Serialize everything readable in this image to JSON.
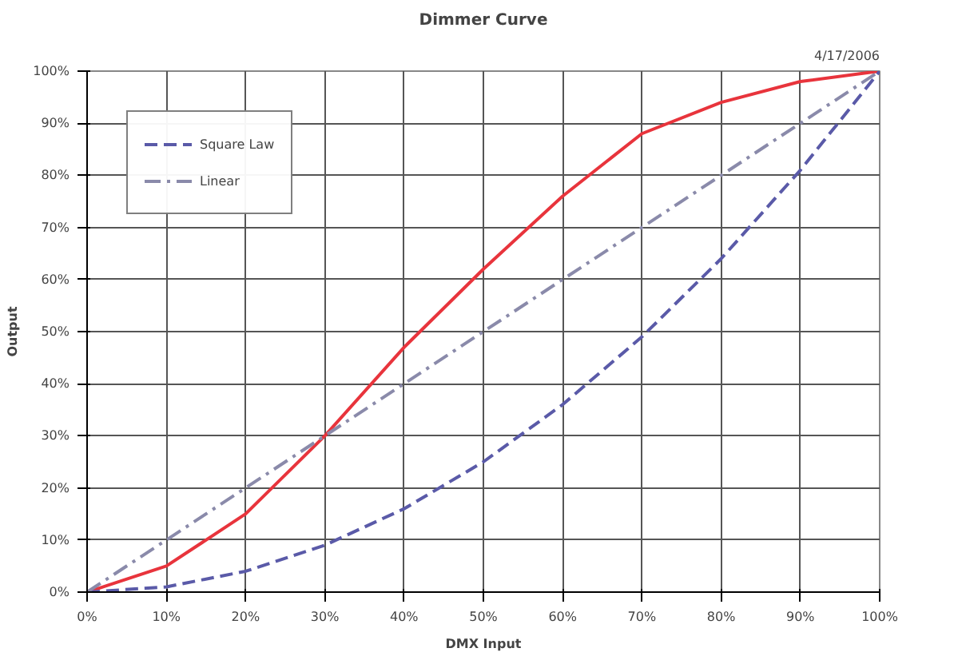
{
  "chart_data": {
    "type": "line",
    "title": "Dimmer Curve",
    "subtitle": "4/17/2006",
    "xlabel": "DMX Input",
    "ylabel": "Output",
    "x": [
      0,
      10,
      20,
      30,
      40,
      50,
      60,
      70,
      80,
      90,
      100
    ],
    "series": [
      {
        "color": "#e8343c",
        "line_style": "solid",
        "values": [
          0,
          5,
          15,
          30,
          47,
          62,
          76,
          88,
          94,
          98,
          100
        ]
      },
      {
        "name": "Square Law",
        "color": "#5a5aa8",
        "line_style": "dashed",
        "values": [
          0,
          1,
          4,
          9,
          16,
          25,
          36,
          49,
          64,
          81,
          100
        ]
      },
      {
        "name": "Linear",
        "color": "#8a8aaa",
        "line_style": "dashdot",
        "values": [
          0,
          10,
          20,
          30,
          40,
          50,
          60,
          70,
          80,
          90,
          100
        ]
      }
    ],
    "xlim": [
      0,
      100
    ],
    "ylim": [
      0,
      100
    ],
    "xticks": [
      {
        "value": 0,
        "label": "0%"
      },
      {
        "value": 10,
        "label": "10%"
      },
      {
        "value": 20,
        "label": "20%"
      },
      {
        "value": 30,
        "label": "30%"
      },
      {
        "value": 40,
        "label": "40%"
      },
      {
        "value": 50,
        "label": "50%"
      },
      {
        "value": 60,
        "label": "60%"
      },
      {
        "value": 70,
        "label": "70%"
      },
      {
        "value": 80,
        "label": "80%"
      },
      {
        "value": 90,
        "label": "90%"
      },
      {
        "value": 100,
        "label": "100%"
      }
    ],
    "yticks": [
      {
        "value": 0,
        "label": "0%"
      },
      {
        "value": 10,
        "label": "10%"
      },
      {
        "value": 20,
        "label": "20%"
      },
      {
        "value": 30,
        "label": "30%"
      },
      {
        "value": 40,
        "label": "40%"
      },
      {
        "value": 50,
        "label": "50%"
      },
      {
        "value": 60,
        "label": "60%"
      },
      {
        "value": 70,
        "label": "70%"
      },
      {
        "value": 80,
        "label": "80%"
      },
      {
        "value": 90,
        "label": "90%"
      },
      {
        "value": 100,
        "label": "100%"
      }
    ],
    "grid": true,
    "legend": "top left",
    "marker": "none"
  }
}
